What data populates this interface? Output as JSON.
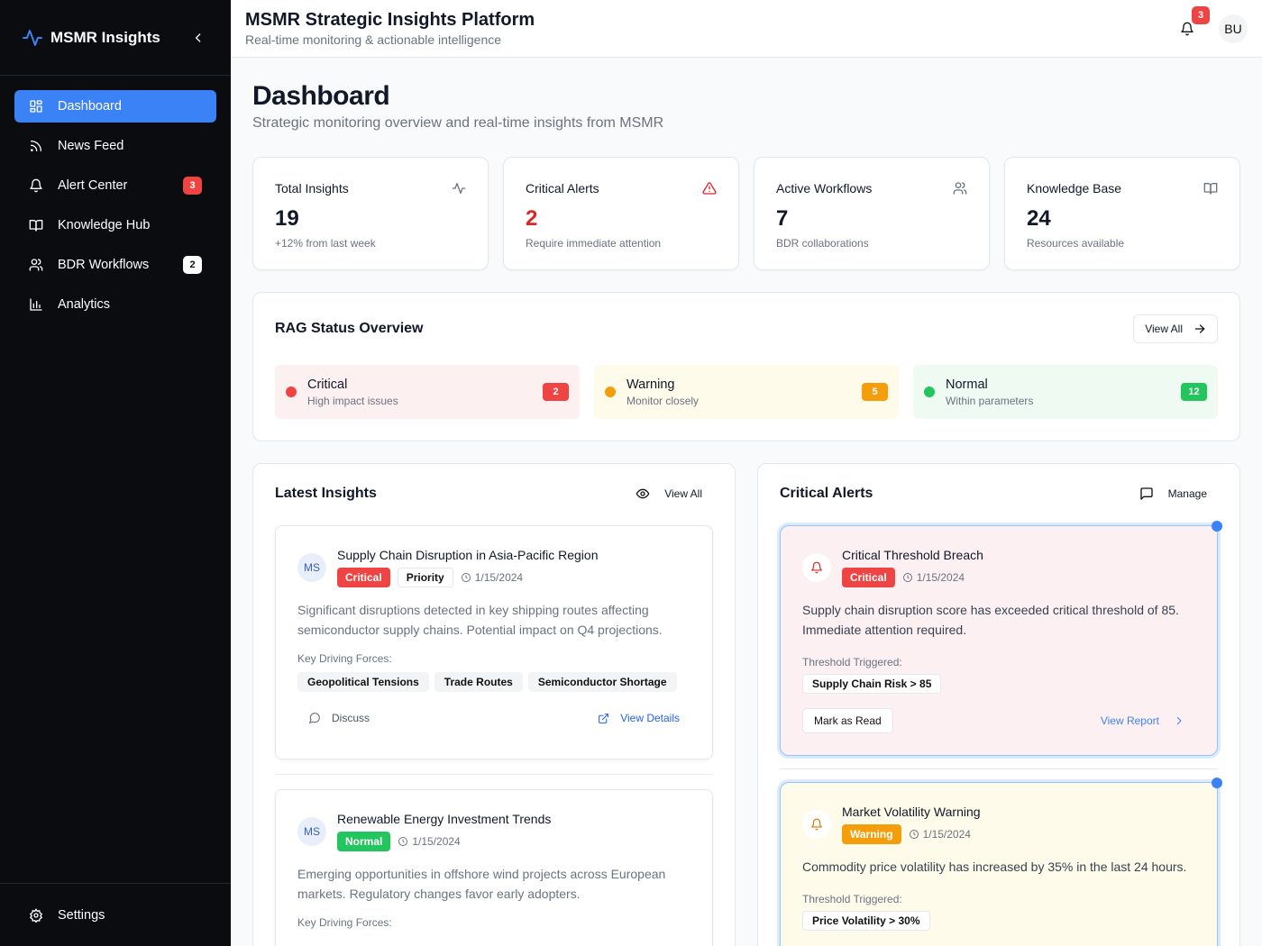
{
  "sidebar": {
    "brand": "MSMR Insights",
    "items": [
      {
        "label": "Dashboard",
        "icon": "dashboard-icon",
        "active": true
      },
      {
        "label": "News Feed",
        "icon": "rss-icon"
      },
      {
        "label": "Alert Center",
        "icon": "bell-icon",
        "badge": "3"
      },
      {
        "label": "Knowledge Hub",
        "icon": "book-icon"
      },
      {
        "label": "BDR Workflows",
        "icon": "users-icon",
        "badge": "2"
      },
      {
        "label": "Analytics",
        "icon": "bar-chart-icon"
      }
    ],
    "settings": "Settings"
  },
  "header": {
    "title": "MSMR Strategic Insights Platform",
    "subtitle": "Real-time monitoring & actionable intelligence",
    "notification_count": "3",
    "avatar": "BU"
  },
  "page": {
    "title": "Dashboard",
    "subtitle": "Strategic monitoring overview and real-time insights from MSMR"
  },
  "stats": [
    {
      "label": "Total Insights",
      "value": "19",
      "note": "+12% from last week"
    },
    {
      "label": "Critical Alerts",
      "value": "2",
      "note": "Require immediate attention"
    },
    {
      "label": "Active Workflows",
      "value": "7",
      "note": "BDR collaborations"
    },
    {
      "label": "Knowledge Base",
      "value": "24",
      "note": "Resources available"
    }
  ],
  "rag": {
    "title": "RAG Status Overview",
    "view_all": "View All",
    "items": [
      {
        "label": "Critical",
        "desc": "High impact issues",
        "count": "2",
        "color": "#ef4444",
        "bg": "#fdf0f0"
      },
      {
        "label": "Warning",
        "desc": "Monitor closely",
        "count": "5",
        "color": "#f59e0b",
        "bg": "#fefbea"
      },
      {
        "label": "Normal",
        "desc": "Within parameters",
        "count": "12",
        "color": "#22c55e",
        "bg": "#effbf2"
      }
    ]
  },
  "insights": {
    "title": "Latest Insights",
    "view_all": "View All",
    "items": [
      {
        "avatar": "MS",
        "title": "Supply Chain Disruption in Asia-Pacific Region",
        "status": "Critical",
        "priority": "Priority",
        "date": "1/15/2024",
        "desc": "Significant disruptions detected in key shipping routes affecting semiconductor supply chains. Potential impact on Q4 projections.",
        "forces_label": "Key Driving Forces:",
        "forces": [
          "Geopolitical Tensions",
          "Trade Routes",
          "Semiconductor Shortage"
        ],
        "discuss": "Discuss",
        "view_details": "View Details"
      },
      {
        "avatar": "MS",
        "title": "Renewable Energy Investment Trends",
        "status": "Normal",
        "date": "1/15/2024",
        "desc": "Emerging opportunities in offshore wind projects across European markets. Regulatory changes favor early adopters.",
        "forces_label": "Key Driving Forces:"
      }
    ]
  },
  "alerts": {
    "title": "Critical Alerts",
    "manage": "Manage",
    "items": [
      {
        "title": "Critical Threshold Breach",
        "status": "Critical",
        "date": "1/15/2024",
        "desc": "Supply chain disruption score has exceeded critical threshold of 85. Immediate attention required.",
        "threshold_label": "Threshold Triggered:",
        "threshold": "Supply Chain Risk > 85",
        "mark_read": "Mark as Read",
        "view_report": "View Report"
      },
      {
        "title": "Market Volatility Warning",
        "status": "Warning",
        "date": "1/15/2024",
        "desc": "Commodity price volatility has increased by 35% in the last 24 hours.",
        "threshold_label": "Threshold Triggered:",
        "threshold": "Price Volatility > 30%"
      }
    ]
  }
}
